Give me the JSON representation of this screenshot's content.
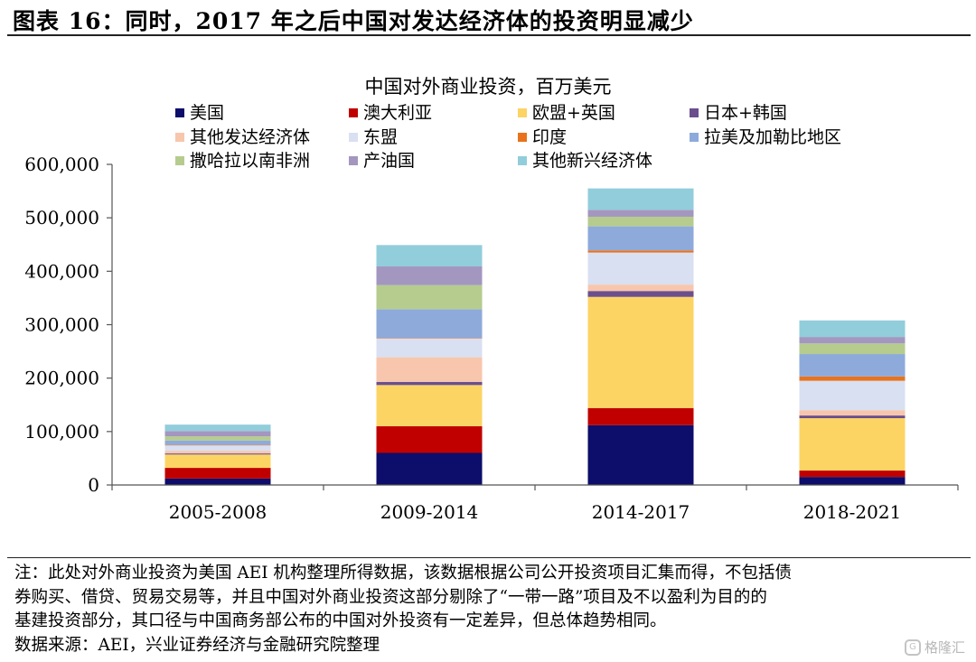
{
  "figure": {
    "title": "图表 16：同时，2017 年之后中国对发达经济体的投资明显减少"
  },
  "chart_data": {
    "type": "bar",
    "stacked": true,
    "title": "中国对外商业投资，百万美元",
    "xlabel": "",
    "ylabel": "",
    "ylim": [
      0,
      600000
    ],
    "yticks": [
      "0",
      "100,000",
      "200,000",
      "300,000",
      "400,000",
      "500,000",
      "600,000"
    ],
    "grid": false,
    "legend_position": "top",
    "categories": [
      "2005-2008",
      "2009-2014",
      "2014-2017",
      "2018-2021"
    ],
    "series": [
      {
        "name": "美国",
        "color": "#0d0d6b",
        "values": [
          12000,
          60000,
          112000,
          15000
        ]
      },
      {
        "name": "澳大利亚",
        "color": "#c00000",
        "values": [
          20000,
          50000,
          32000,
          12000
        ]
      },
      {
        "name": "欧盟+英国",
        "color": "#fcd464",
        "values": [
          25000,
          77000,
          208000,
          98000
        ]
      },
      {
        "name": "日本+韩国",
        "color": "#6b4f8d",
        "values": [
          2000,
          6000,
          11000,
          5000
        ]
      },
      {
        "name": "其他发达经济体",
        "color": "#f8c6ac",
        "values": [
          5000,
          46000,
          12000,
          10000
        ]
      },
      {
        "name": "东盟",
        "color": "#d9e0f2",
        "values": [
          10000,
          35000,
          60000,
          55000
        ]
      },
      {
        "name": "印度",
        "color": "#e8731c",
        "values": [
          1000,
          1000,
          4000,
          8000
        ]
      },
      {
        "name": "拉美及加勒比地区",
        "color": "#8eaadb",
        "values": [
          8000,
          54000,
          45000,
          42000
        ]
      },
      {
        "name": "撒哈拉以南非洲",
        "color": "#b5cc8e",
        "values": [
          8000,
          45000,
          18000,
          20000
        ]
      },
      {
        "name": "产油国",
        "color": "#a397c0",
        "values": [
          10000,
          35000,
          13000,
          12000
        ]
      },
      {
        "name": "其他新兴经济体",
        "color": "#92cddb",
        "values": [
          12000,
          40000,
          40000,
          31000
        ]
      }
    ]
  },
  "notes": {
    "line1": "注：此处对外商业投资为美国 AEI 机构整理所得数据，该数据根据公司公开投资项目汇集而得，不包括债",
    "line2": "券购买、借贷、贸易交易等，并且中国对外商业投资这部分剔除了“一带一路”项目及不以盈利为目的的",
    "line3": "基建投资部分，其口径与中国商务部公布的中国对外投资有一定差异，但总体趋势相同。",
    "source": "数据来源：AEI，兴业证券经济与金融研究院整理"
  },
  "watermark": {
    "logo": "G",
    "text": "格隆汇"
  }
}
